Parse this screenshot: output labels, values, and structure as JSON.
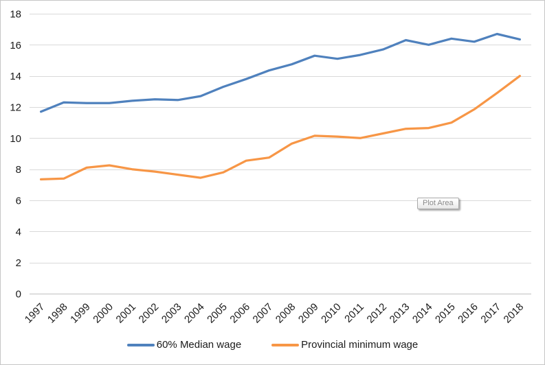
{
  "window": {
    "background_color": "#FFFFFF",
    "border_color": "#C6C6C6"
  },
  "tooltip": {
    "label": "Plot Area"
  },
  "chart_data": {
    "type": "line",
    "title": "",
    "xlabel": "",
    "ylabel": "",
    "categories": [
      "1997",
      "1998",
      "1999",
      "2000",
      "2001",
      "2002",
      "2003",
      "2004",
      "2005",
      "2006",
      "2007",
      "2008",
      "2009",
      "2010",
      "2011",
      "2012",
      "2013",
      "2014",
      "2015",
      "2016",
      "2017",
      "2018"
    ],
    "series": [
      {
        "name": "60% Median wage",
        "color": "#4F81BD",
        "values": [
          11.7,
          12.3,
          12.25,
          12.25,
          12.4,
          12.5,
          12.45,
          12.7,
          13.3,
          13.8,
          14.35,
          14.75,
          15.3,
          15.1,
          15.35,
          15.7,
          16.3,
          16.0,
          16.4,
          16.2,
          16.7,
          16.35
        ]
      },
      {
        "name": "Provincial minimum wage",
        "color": "#F79646",
        "values": [
          7.35,
          7.4,
          8.1,
          8.25,
          8.0,
          7.85,
          7.65,
          7.45,
          7.8,
          8.55,
          8.75,
          9.65,
          10.15,
          10.1,
          10.0,
          10.3,
          10.6,
          10.65,
          11.0,
          11.85,
          12.9,
          14.0
        ]
      }
    ],
    "ylim": [
      0,
      18
    ],
    "yticks": [
      0,
      2,
      4,
      6,
      8,
      10,
      12,
      14,
      16,
      18
    ],
    "grid": true,
    "gridline_color": "#D9D9D9",
    "axis_line_color": "#BFBFBF",
    "tick_label_color": "#1A1A1A",
    "x_label_rotation": -45,
    "legend_position": "bottom",
    "line_width": 3.25
  }
}
